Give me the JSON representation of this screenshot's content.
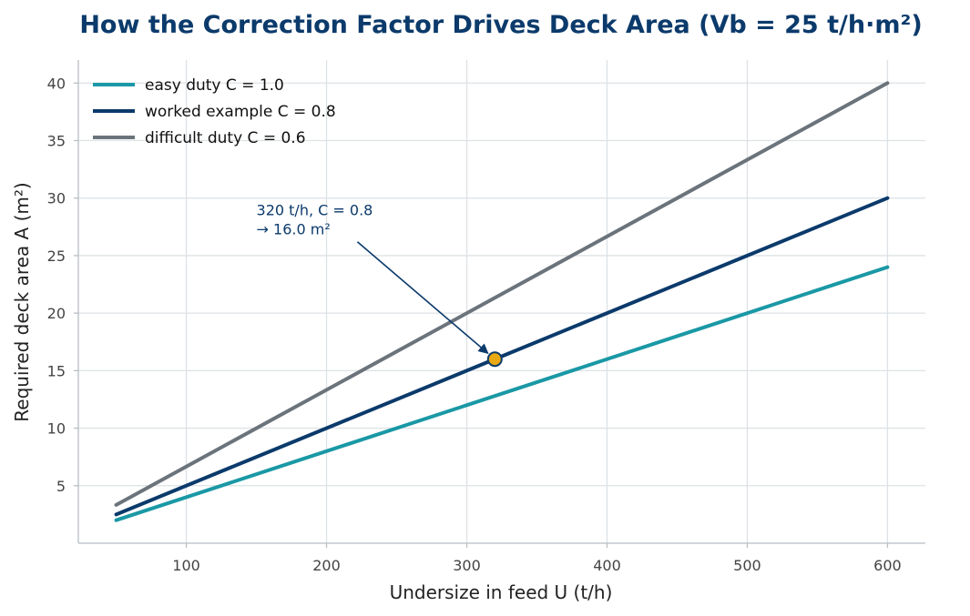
{
  "chart_data": {
    "type": "line",
    "title": "How the Correction Factor Drives Deck Area (Vb = 25 t/h·m²)",
    "xlabel": "Undersize in feed  U (t/h)",
    "ylabel": "Required deck area  A (m²)",
    "xlim": [
      23,
      627
    ],
    "ylim": [
      0,
      42
    ],
    "xticks": [
      100,
      200,
      300,
      400,
      500,
      600
    ],
    "yticks": [
      5,
      10,
      15,
      20,
      25,
      30,
      35,
      40
    ],
    "grid": true,
    "legend_position": "top-left",
    "series": [
      {
        "name": "easy duty  C = 1.0",
        "color": "#1a98a5",
        "x": [
          50,
          600
        ],
        "y": [
          2.0,
          24.0
        ]
      },
      {
        "name": "worked example  C = 0.8",
        "color": "#0b3a6b",
        "x": [
          50,
          600
        ],
        "y": [
          2.5,
          30.0
        ]
      },
      {
        "name": "difficult duty  C = 0.6",
        "color": "#6b737b",
        "x": [
          50,
          600
        ],
        "y": [
          3.33,
          40.0
        ]
      }
    ],
    "highlight_point": {
      "x": 320,
      "y": 16.0,
      "color": "#e8a912"
    },
    "annotation": {
      "lines": [
        "320 t/h, C = 0.8",
        "→ 16.0 m²"
      ],
      "text_x": 150,
      "text_y": 28.5,
      "arrow_from": [
        222,
        26.2
      ]
    }
  }
}
